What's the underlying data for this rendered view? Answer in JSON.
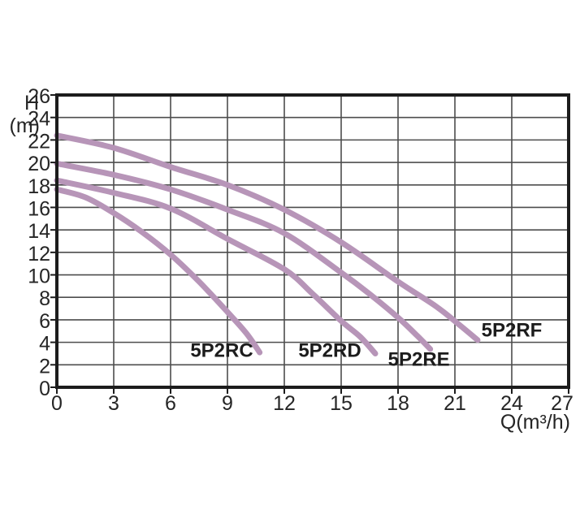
{
  "figure": {
    "background": "#ffffff"
  },
  "chart_data": {
    "type": "line",
    "title": "",
    "xlabel": "Q(m³/h)",
    "ylabel_h": "H",
    "ylabel_unit": "(m)",
    "xlim": [
      0,
      27
    ],
    "ylim": [
      0,
      26
    ],
    "x_ticks": [
      0,
      3,
      6,
      9,
      12,
      15,
      18,
      21,
      24,
      27
    ],
    "y_ticks": [
      0,
      2,
      4,
      6,
      8,
      10,
      12,
      14,
      16,
      18,
      20,
      22,
      24,
      26
    ],
    "grid": true,
    "legend_position": "inline-labels",
    "curve_color": "#b795b8",
    "grid_color": "#4d4d4d",
    "frame_color": "#1c1c1c",
    "text_color": "#252525",
    "series": [
      {
        "name": "5P2RC",
        "points": [
          [
            0,
            17.6
          ],
          [
            1.5,
            16.9
          ],
          [
            3,
            15.5
          ],
          [
            4.5,
            13.8
          ],
          [
            6,
            11.8
          ],
          [
            7.5,
            9.4
          ],
          [
            9,
            6.7
          ],
          [
            10,
            4.8
          ],
          [
            10.7,
            3.1
          ]
        ]
      },
      {
        "name": "5P2RD",
        "points": [
          [
            0,
            18.4
          ],
          [
            3,
            17.3
          ],
          [
            6,
            15.9
          ],
          [
            9,
            13.2
          ],
          [
            12,
            10.5
          ],
          [
            13.5,
            8.3
          ],
          [
            15,
            5.9
          ],
          [
            16,
            4.5
          ],
          [
            16.8,
            3.0
          ]
        ]
      },
      {
        "name": "5P2RE",
        "points": [
          [
            0,
            19.9
          ],
          [
            3,
            18.9
          ],
          [
            6,
            17.6
          ],
          [
            9,
            15.8
          ],
          [
            12,
            13.7
          ],
          [
            15,
            10.2
          ],
          [
            16.5,
            8.3
          ],
          [
            18,
            6.2
          ],
          [
            19,
            4.6
          ],
          [
            19.7,
            3.4
          ]
        ]
      },
      {
        "name": "5P2RF",
        "points": [
          [
            0,
            22.4
          ],
          [
            3,
            21.3
          ],
          [
            6,
            19.6
          ],
          [
            9,
            18.0
          ],
          [
            12,
            15.8
          ],
          [
            15,
            12.9
          ],
          [
            18,
            9.4
          ],
          [
            20,
            7.2
          ],
          [
            21.2,
            5.6
          ],
          [
            22.2,
            4.2
          ]
        ]
      }
    ],
    "curve_labels": [
      {
        "text": "5P2RC",
        "q": 8.7,
        "h": 3.3
      },
      {
        "text": "5P2RD",
        "q": 14.4,
        "h": 3.3
      },
      {
        "text": "5P2RE",
        "q": 19.1,
        "h": 2.5
      },
      {
        "text": "5P2RF",
        "q": 24.0,
        "h": 5.1
      }
    ]
  }
}
